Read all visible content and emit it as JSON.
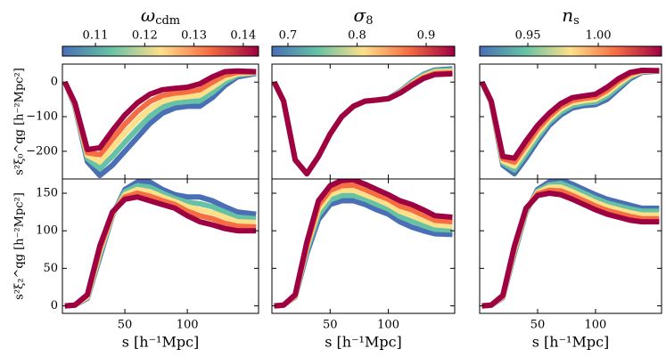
{
  "chart_data": [
    {
      "type": "line",
      "title": "ω",
      "title_sub": "cdm",
      "colorbar": {
        "lim": [
          0.1033,
          0.1431
        ],
        "ticks": [
          0.11,
          0.12,
          0.13,
          0.14
        ]
      },
      "ylabel": "s²ξ₀^qg [h⁻²Mpc²]",
      "xtick_labels": false,
      "ytick_labels": true,
      "x": [
        2,
        10,
        20,
        30,
        40,
        50,
        60,
        70,
        80,
        90,
        100,
        110,
        120,
        130,
        140,
        155
      ],
      "xlim": [
        0,
        157
      ],
      "xticks": [
        50,
        100
      ],
      "ylim": [
        -280,
        52
      ],
      "yticks": [
        {
          "value": -200,
          "label": "−200"
        },
        {
          "value": -100,
          "label": "−100"
        },
        0
      ],
      "series": [
        {
          "color": "#4a6fb5",
          "values": [
            0,
            -70,
            -230,
            -270,
            -240,
            -200,
            -160,
            -120,
            -90,
            -75,
            -70,
            -70,
            -45,
            -10,
            15,
            25
          ]
        },
        {
          "color": "#66c2a5",
          "values": [
            0,
            -68,
            -221,
            -250,
            -215,
            -174,
            -135,
            -99,
            -73,
            -60,
            -56,
            -54,
            -30,
            0,
            20,
            27
          ]
        },
        {
          "color": "#fee08b",
          "values": [
            0,
            -65,
            -212,
            -230,
            -190,
            -148,
            -110,
            -78,
            -56,
            -46,
            -42,
            -38,
            -15,
            10,
            24,
            28
          ]
        },
        {
          "color": "#f46d43",
          "values": [
            0,
            -62,
            -204,
            -210,
            -165,
            -122,
            -85,
            -56,
            -39,
            -32,
            -28,
            -22,
            0,
            20,
            28,
            29
          ]
        },
        {
          "color": "#9e0142",
          "values": [
            0,
            -60,
            -195,
            -190,
            -140,
            -95,
            -60,
            -35,
            -22,
            -18,
            -15,
            -5,
            15,
            30,
            32,
            30
          ]
        }
      ]
    },
    {
      "type": "line",
      "title": "σ",
      "title_sub": "8",
      "colorbar": {
        "lim": [
          0.6768,
          0.9413
        ],
        "ticks": [
          0.7,
          0.8,
          0.9
        ]
      },
      "xtick_labels": false,
      "ytick_labels": false,
      "x": [
        2,
        10,
        20,
        30,
        40,
        50,
        60,
        70,
        80,
        90,
        100,
        110,
        120,
        130,
        140,
        155
      ],
      "xlim": [
        0,
        157
      ],
      "xticks": [
        50,
        100
      ],
      "ylim": [
        -280,
        52
      ],
      "yticks": [
        -200,
        -100,
        0
      ],
      "series": [
        {
          "color": "#4a6fb5",
          "values": [
            0,
            -55,
            -225,
            -265,
            -215,
            -150,
            -100,
            -70,
            -55,
            -52,
            -47,
            -27,
            0,
            22,
            35,
            38
          ]
        },
        {
          "color": "#66c2a5",
          "values": [
            0,
            -55,
            -225,
            -265,
            -215,
            -150,
            -100,
            -70,
            -55,
            -52,
            -47,
            -28,
            -2,
            20,
            33,
            35
          ]
        },
        {
          "color": "#fee08b",
          "values": [
            0,
            -55,
            -225,
            -265,
            -215,
            -150,
            -100,
            -70,
            -55,
            -52,
            -48,
            -30,
            -5,
            16,
            29,
            31
          ]
        },
        {
          "color": "#f46d43",
          "values": [
            0,
            -55,
            -225,
            -265,
            -215,
            -150,
            -100,
            -70,
            -55,
            -52,
            -48,
            -31,
            -7,
            13,
            25,
            27
          ]
        },
        {
          "color": "#9e0142",
          "values": [
            0,
            -55,
            -225,
            -265,
            -215,
            -150,
            -100,
            -70,
            -55,
            -52,
            -48,
            -32,
            -10,
            10,
            22,
            24
          ]
        }
      ]
    },
    {
      "type": "line",
      "title": "n",
      "title_sub": "s",
      "colorbar": {
        "lim": [
          0.9158,
          1.0449
        ],
        "ticks": [
          0.95,
          {
            "value": 1,
            "label": "1.00"
          }
        ]
      },
      "xtick_labels": false,
      "ytick_labels": false,
      "x": [
        2,
        10,
        20,
        30,
        40,
        50,
        60,
        70,
        80,
        90,
        100,
        110,
        120,
        130,
        140,
        155
      ],
      "xlim": [
        0,
        157
      ],
      "xticks": [
        50,
        100
      ],
      "ylim": [
        -280,
        52
      ],
      "yticks": [
        -200,
        -100,
        0
      ],
      "series": [
        {
          "color": "#4a6fb5",
          "values": [
            0,
            -60,
            -240,
            -265,
            -220,
            -170,
            -125,
            -95,
            -75,
            -68,
            -65,
            -50,
            -20,
            10,
            28,
            32
          ]
        },
        {
          "color": "#66c2a5",
          "values": [
            0,
            -59,
            -234,
            -254,
            -208,
            -159,
            -116,
            -87,
            -68,
            -61,
            -58,
            -41,
            -13,
            15,
            30,
            32
          ]
        },
        {
          "color": "#fee08b",
          "values": [
            0,
            -58,
            -228,
            -243,
            -195,
            -148,
            -108,
            -78,
            -60,
            -54,
            -50,
            -32,
            -5,
            19,
            31,
            33
          ]
        },
        {
          "color": "#f46d43",
          "values": [
            0,
            -56,
            -221,
            -231,
            -183,
            -136,
            -99,
            -70,
            -53,
            -47,
            -43,
            -24,
            3,
            24,
            33,
            33
          ]
        },
        {
          "color": "#9e0142",
          "values": [
            0,
            -55,
            -215,
            -220,
            -170,
            -125,
            -90,
            -62,
            -45,
            -40,
            -35,
            -15,
            10,
            28,
            34,
            33
          ]
        }
      ]
    },
    {
      "type": "line",
      "ylabel": "s²ξ₂^qg [h⁻²Mpc²]",
      "xlabel": "s [h⁻¹Mpc]",
      "xtick_labels": true,
      "ytick_labels": true,
      "x": [
        2,
        10,
        20,
        30,
        40,
        50,
        60,
        70,
        80,
        90,
        100,
        110,
        120,
        130,
        140,
        155
      ],
      "xlim": [
        0,
        157
      ],
      "xticks": [
        50,
        100
      ],
      "ylim": [
        -10,
        169
      ],
      "yticks": [
        0,
        50,
        100,
        150
      ],
      "series": [
        {
          "color": "#4a6fb5",
          "values": [
            0,
            1,
            10,
            65,
            120,
            155,
            165,
            165,
            155,
            148,
            145,
            145,
            140,
            132,
            125,
            122
          ]
        },
        {
          "color": "#66c2a5",
          "values": [
            0,
            1,
            11,
            68,
            121,
            152,
            160,
            158,
            150,
            143,
            138,
            136,
            132,
            125,
            118,
            116
          ]
        },
        {
          "color": "#fee08b",
          "values": [
            0,
            1,
            12,
            72,
            122,
            148,
            155,
            152,
            145,
            139,
            132,
            128,
            124,
            118,
            112,
            111
          ]
        },
        {
          "color": "#f46d43",
          "values": [
            0,
            1,
            14,
            76,
            124,
            145,
            150,
            146,
            140,
            135,
            126,
            120,
            116,
            110,
            106,
            105
          ]
        },
        {
          "color": "#9e0142",
          "values": [
            0,
            1,
            15,
            80,
            125,
            142,
            145,
            140,
            135,
            130,
            120,
            112,
            108,
            103,
            100,
            100
          ]
        }
      ]
    },
    {
      "type": "line",
      "xlabel": "s [h⁻¹Mpc]",
      "xtick_labels": true,
      "ytick_labels": false,
      "x": [
        2,
        10,
        20,
        30,
        40,
        50,
        60,
        70,
        80,
        90,
        100,
        110,
        120,
        130,
        140,
        155
      ],
      "xlim": [
        0,
        157
      ],
      "xticks": [
        50,
        100
      ],
      "ylim": [
        -10,
        169
      ],
      "yticks": [
        0,
        50,
        100,
        150
      ],
      "series": [
        {
          "color": "#4a6fb5",
          "values": [
            0,
            1,
            12,
            70,
            115,
            135,
            140,
            140,
            135,
            128,
            122,
            112,
            105,
            100,
            96,
            95
          ]
        },
        {
          "color": "#66c2a5",
          "values": [
            0,
            1,
            13,
            74,
            121,
            141,
            147,
            147,
            142,
            135,
            129,
            119,
            113,
            107,
            102,
            101
          ]
        },
        {
          "color": "#fee08b",
          "values": [
            0,
            1,
            13,
            78,
            128,
            148,
            154,
            154,
            148,
            142,
            135,
            126,
            120,
            114,
            108,
            106
          ]
        },
        {
          "color": "#f46d43",
          "values": [
            0,
            1,
            14,
            81,
            134,
            154,
            160,
            161,
            155,
            148,
            142,
            133,
            128,
            121,
            114,
            112
          ]
        },
        {
          "color": "#9e0142",
          "values": [
            0,
            1,
            15,
            85,
            140,
            160,
            167,
            168,
            162,
            155,
            148,
            140,
            135,
            128,
            120,
            118
          ]
        }
      ]
    },
    {
      "type": "line",
      "xlabel": "s [h⁻¹Mpc]",
      "xtick_labels": true,
      "ytick_labels": false,
      "x": [
        2,
        10,
        20,
        30,
        40,
        50,
        60,
        70,
        80,
        90,
        100,
        110,
        120,
        130,
        140,
        155
      ],
      "xlim": [
        0,
        157
      ],
      "xticks": [
        50,
        100
      ],
      "ylim": [
        -10,
        169
      ],
      "yticks": [
        0,
        50,
        100,
        150
      ],
      "series": [
        {
          "color": "#4a6fb5",
          "values": [
            0,
            1,
            11,
            70,
            125,
            155,
            165,
            168,
            162,
            155,
            148,
            142,
            138,
            134,
            130,
            130
          ]
        },
        {
          "color": "#66c2a5",
          "values": [
            0,
            1,
            12,
            72,
            126,
            153,
            161,
            163,
            157,
            150,
            143,
            137,
            133,
            129,
            126,
            126
          ]
        },
        {
          "color": "#fee08b",
          "values": [
            0,
            1,
            12,
            75,
            128,
            151,
            158,
            158,
            152,
            145,
            138,
            132,
            128,
            124,
            121,
            121
          ]
        },
        {
          "color": "#f46d43",
          "values": [
            0,
            1,
            13,
            78,
            129,
            149,
            154,
            153,
            147,
            140,
            133,
            127,
            123,
            119,
            116,
            116
          ]
        },
        {
          "color": "#9e0142",
          "values": [
            0,
            1,
            14,
            80,
            130,
            147,
            150,
            148,
            142,
            135,
            128,
            122,
            118,
            114,
            112,
            112
          ]
        }
      ]
    }
  ]
}
